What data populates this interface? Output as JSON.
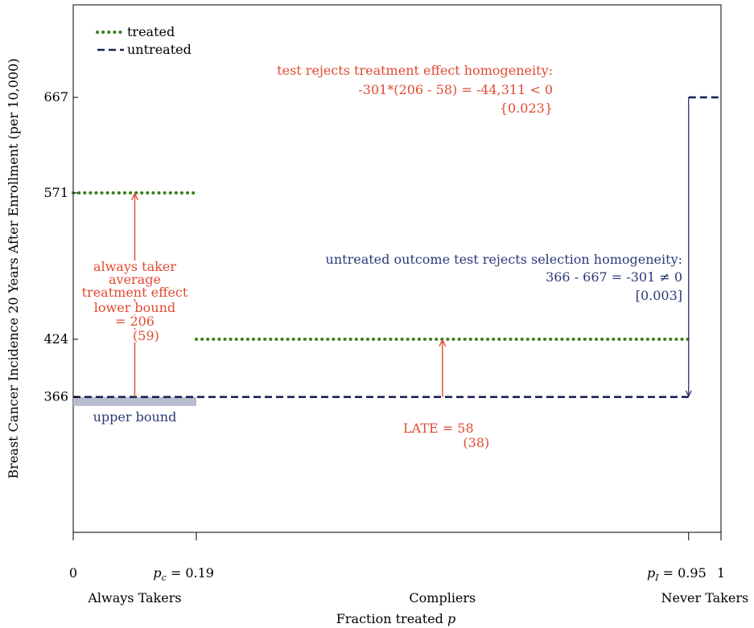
{
  "chart_data": {
    "type": "line",
    "title": "",
    "xlabel": "Fraction treated p",
    "ylabel": "Breast Cancer Incidence 20 Years After Enrollment (per 10,000)",
    "xlim": [
      0,
      1
    ],
    "ylim": [
      230,
      760
    ],
    "grid": false,
    "legend_position": "top-left",
    "x_ticks": [
      {
        "value": 0,
        "label": "0"
      },
      {
        "value": 0.19,
        "label": "p_c = 0.19"
      },
      {
        "value": 0.95,
        "label": "p_I = 0.95"
      },
      {
        "value": 1,
        "label": "1"
      }
    ],
    "y_ticks": [
      {
        "value": 366,
        "label": "366"
      },
      {
        "value": 424,
        "label": "424"
      },
      {
        "value": 571,
        "label": "571"
      },
      {
        "value": 667,
        "label": "667"
      }
    ],
    "groups": [
      {
        "label": "Always Takers",
        "x": 0.095
      },
      {
        "label": "Compliers",
        "x": 0.57
      },
      {
        "label": "Never Takers",
        "x": 0.975
      }
    ],
    "series": [
      {
        "name": "treated",
        "style": "dotted",
        "color": "#3a7d1e",
        "segments": [
          {
            "x0": 0,
            "x1": 0.19,
            "y": 571
          },
          {
            "x0": 0.19,
            "x1": 0.95,
            "y": 424
          }
        ]
      },
      {
        "name": "untreated",
        "style": "dashed",
        "color": "#1a2357",
        "segments": [
          {
            "x0": 0,
            "x1": 0.95,
            "y": 366
          },
          {
            "x0": 0.95,
            "x1": 1,
            "y": 667
          }
        ]
      }
    ],
    "upper_bound_band": {
      "x0": 0,
      "x1": 0.19,
      "y": 366,
      "y_low": 357,
      "color": "#b8bcd0",
      "label": "upper bound"
    },
    "arrows": [
      {
        "x": 0.095,
        "from": 366,
        "to": 571,
        "color": "#e04a32"
      },
      {
        "x": 0.57,
        "from": 366,
        "to": 424,
        "color": "#e04a32"
      },
      {
        "x": 0.95,
        "from": 667,
        "to": 366,
        "color": "#1a2357"
      }
    ],
    "annotations": {
      "always_taker": [
        "always taker",
        "average",
        "treatment effect",
        "lower bound",
        "= 206",
        "(59)"
      ],
      "late": [
        "LATE = 58",
        "(38)"
      ],
      "selection": [
        "untreated outcome test rejects selection homogeneity:",
        "366 - 667 = -301 ≠ 0",
        "[0.003]"
      ],
      "homogeneity": [
        "test rejects treatment effect homogeneity:",
        "-301*(206 - 58) = -44,311 < 0",
        "{0.023}"
      ]
    },
    "colors": {
      "treated": "#3a7d1e",
      "untreated": "#1a2357",
      "effect_text": "#e04a32",
      "selection_text": "#2b3a78",
      "band": "#b8bcd0"
    }
  }
}
